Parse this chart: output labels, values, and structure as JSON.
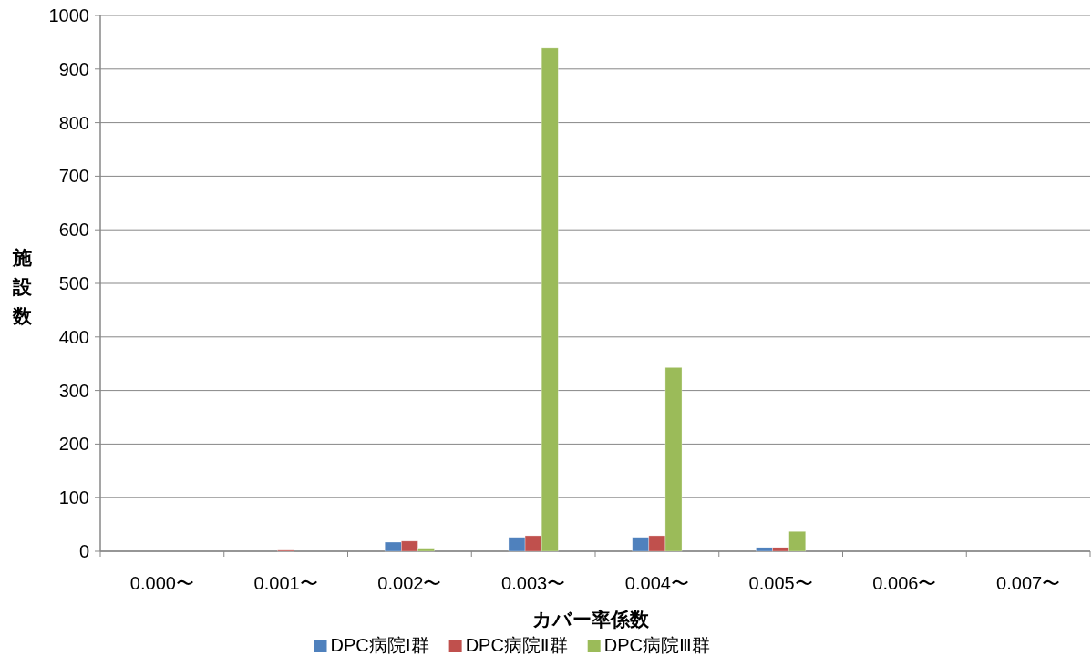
{
  "chart_data": {
    "type": "bar",
    "xlabel": "カバー率係数",
    "ylabel": "施設数",
    "categories": [
      "0.000〜",
      "0.001〜",
      "0.002〜",
      "0.003〜",
      "0.004〜",
      "0.005〜",
      "0.006〜",
      "0.007〜"
    ],
    "series": [
      {
        "name": "DPC病院Ⅰ群",
        "color": "#4f81bd",
        "values": [
          0,
          0,
          17,
          26,
          26,
          7,
          0,
          0
        ]
      },
      {
        "name": "DPC病院Ⅱ群",
        "color": "#c0504d",
        "values": [
          0,
          2,
          19,
          29,
          29,
          7,
          0,
          0
        ]
      },
      {
        "name": "DPC病院Ⅲ群",
        "color": "#9bbb59",
        "values": [
          0,
          0,
          4,
          939,
          343,
          37,
          0,
          0
        ]
      }
    ],
    "ylim": [
      0,
      1000
    ],
    "yticks": [
      0,
      100,
      200,
      300,
      400,
      500,
      600,
      700,
      800,
      900,
      1000
    ],
    "grid": "y",
    "legend": "bottom"
  }
}
